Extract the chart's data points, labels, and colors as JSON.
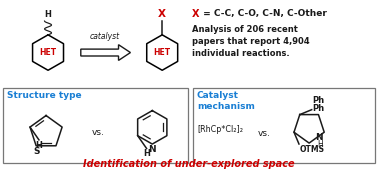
{
  "bg_color": "#ffffff",
  "blue_color": "#1a7fd4",
  "red_color": "#cc0000",
  "black_color": "#1a1a1a",
  "gray_color": "#666666",
  "box_edge_color": "#777777",
  "catalyst_label": "catalyst",
  "het_label": "HET",
  "x_label": "X",
  "x_eq": " = C-C, C-O, C-N, C-Other",
  "analysis_text": "Analysis of 206 recent\npapers that report 4,904\nindividual reactions.",
  "box1_title": "Structure type",
  "box1_vs": "vs.",
  "box2_title": "Catalyst\nmechanism",
  "box2_catalyst": "[RhCp*Cl₂]₂",
  "box2_vs": "vs.",
  "bottom_text": "Identification of under-explored space",
  "s_label": "S",
  "n_label": "N",
  "h_label": "H",
  "nh_label": "N",
  "ph1_label": "Ph",
  "ph2_label": "Ph",
  "otms_label": "OTMS"
}
